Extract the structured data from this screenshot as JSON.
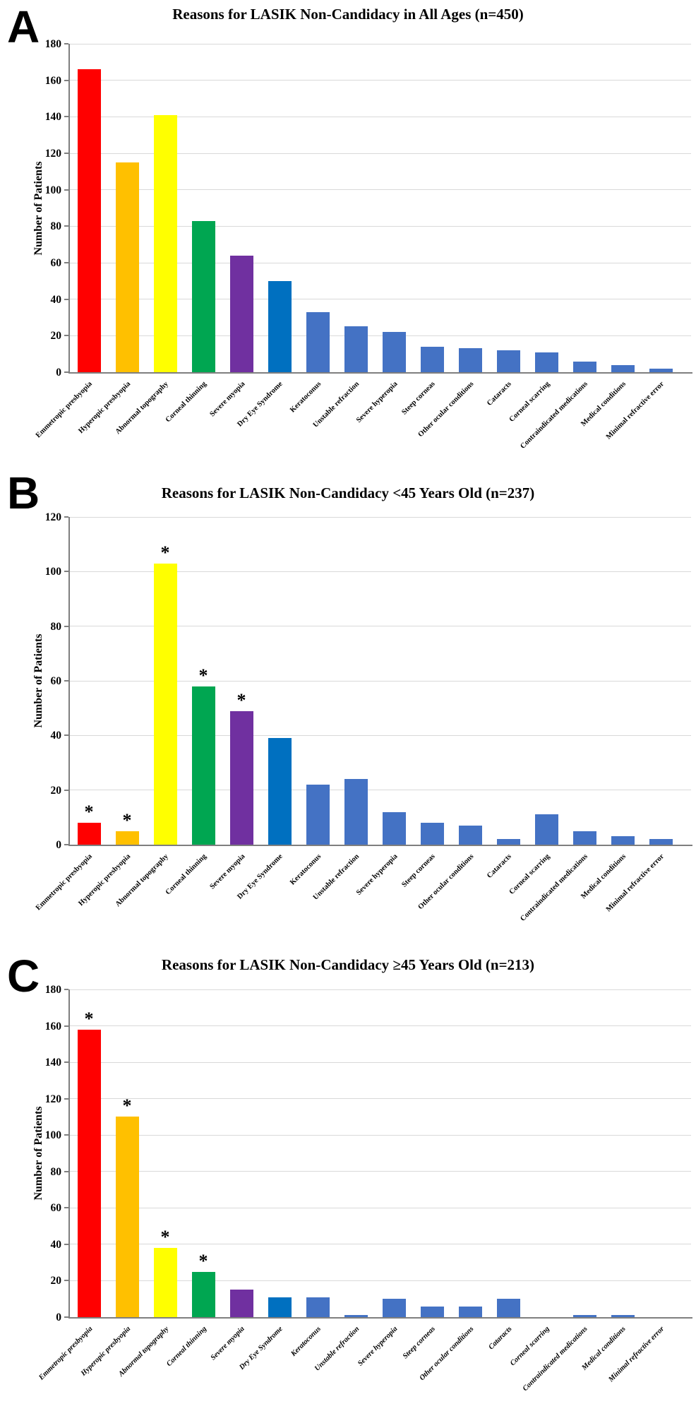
{
  "figure_type": "three-panel bar chart figure",
  "significance_marker": "*",
  "style": {
    "bar_colors": [
      "#FF0000",
      "#FFC000",
      "#FFFF00",
      "#00A651",
      "#7030A0",
      "#0070C0",
      "#4472C4",
      "#4472C4",
      "#4472C4",
      "#4472C4",
      "#4472C4",
      "#4472C4",
      "#4472C4",
      "#4472C4",
      "#4472C4",
      "#4472C4"
    ],
    "gridline_color": "#d9d9d9",
    "axis_color": "#7f7f7f",
    "text_color": "#000000",
    "background_color": "#ffffff"
  },
  "chart_data": [
    {
      "type": "bar",
      "panel_letter": "A",
      "title": "Reasons for LASIK Non-Candidacy in All Ages (n=450)",
      "xlabel": "",
      "ylabel": "Number of Patients",
      "ylim": [
        0,
        180
      ],
      "yticks": [
        0,
        20,
        40,
        60,
        80,
        100,
        120,
        140,
        160,
        180
      ],
      "grid": true,
      "legend": "none",
      "categories": [
        "Emmetropic presbyopia",
        "Hyperopic presbyopia",
        "Abnormal topography",
        "Corneal thinning",
        "Severe myopia",
        "Dry Eye Syndrome",
        "Keratoconus",
        "Unstable refraction",
        "Severe hyperopia",
        "Steep corneas",
        "Other ocular conditions",
        "Cataracts",
        "Corneal scarring",
        "Contraindicated medications",
        "Medical conditions",
        "Minimal refractive error"
      ],
      "values": [
        166,
        115,
        141,
        83,
        64,
        50,
        33,
        25,
        22,
        14,
        13,
        12,
        11,
        6,
        4,
        2
      ],
      "significant_indices": []
    },
    {
      "type": "bar",
      "panel_letter": "B",
      "title": "Reasons for LASIK Non-Candidacy <45 Years Old (n=237)",
      "xlabel": "",
      "ylabel": "Number of Patients",
      "ylim": [
        0,
        120
      ],
      "yticks": [
        0,
        20,
        40,
        60,
        80,
        100,
        120
      ],
      "grid": true,
      "legend": "none",
      "categories": [
        "Emmetropic presbyopia",
        "Hyperopic presbyopia",
        "Abnormal topography",
        "Corneal thinning",
        "Severe myopia",
        "Dry Eye Syndrome",
        "Keratoconus",
        "Unstable refraction",
        "Severe hyperopia",
        "Steep corneas",
        "Other ocular conditions",
        "Cataracts",
        "Corneal scarring",
        "Contraindicated medications",
        "Medical conditions",
        "Minimal refractive error"
      ],
      "values": [
        8,
        5,
        103,
        58,
        49,
        39,
        22,
        24,
        12,
        8,
        7,
        2,
        11,
        5,
        3,
        2
      ],
      "significant_indices": [
        0,
        1,
        2,
        3,
        4
      ]
    },
    {
      "type": "bar",
      "panel_letter": "C",
      "title": "Reasons for LASIK Non-Candidacy ≥45 Years Old (n=213)",
      "xlabel": "",
      "ylabel": "Number of Patients",
      "ylim": [
        0,
        180
      ],
      "yticks": [
        0,
        20,
        40,
        60,
        80,
        100,
        120,
        140,
        160,
        180
      ],
      "grid": true,
      "legend": "none",
      "categories": [
        "Emmetropic presbyopia",
        "Hyperopic presbyopia",
        "Abnormal topography",
        "Corneal thinning",
        "Severe myopia",
        "Dry Eye Syndrome",
        "Keratoconus",
        "Unstable refraction",
        "Severe hyperopia",
        "Steep corneas",
        "Other ocular conditions",
        "Cataracts",
        "Corneal scarring",
        "Contraindicated medications",
        "Medical conditions",
        "Minimal refractive error"
      ],
      "values": [
        158,
        110,
        38,
        25,
        15,
        11,
        11,
        1,
        10,
        6,
        6,
        10,
        0,
        1,
        1,
        0
      ],
      "significant_indices": [
        0,
        1,
        2,
        3
      ]
    }
  ]
}
